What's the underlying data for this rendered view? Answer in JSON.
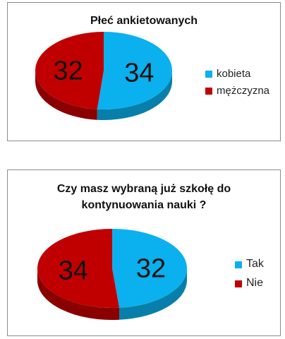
{
  "colors": {
    "blue": "#0BB0EE",
    "red": "#C00000"
  },
  "chart_data": [
    {
      "type": "pie",
      "title": "Płeć ankietowanych",
      "categories": [
        "kobieta",
        "mężczyzna"
      ],
      "values": [
        34,
        32
      ],
      "colors": [
        "#0BB0EE",
        "#C00000"
      ],
      "legend_position": "right",
      "style": "3d"
    },
    {
      "type": "pie",
      "title": "Czy masz wybraną już szkołę do kontynuowania nauki ?",
      "title_lines": [
        "Czy masz wybraną już szkołę do",
        "kontynuowania nauki ?"
      ],
      "categories": [
        "Tak",
        "Nie"
      ],
      "values": [
        32,
        34
      ],
      "colors": [
        "#0BB0EE",
        "#C00000"
      ],
      "legend_position": "right",
      "style": "3d"
    }
  ]
}
